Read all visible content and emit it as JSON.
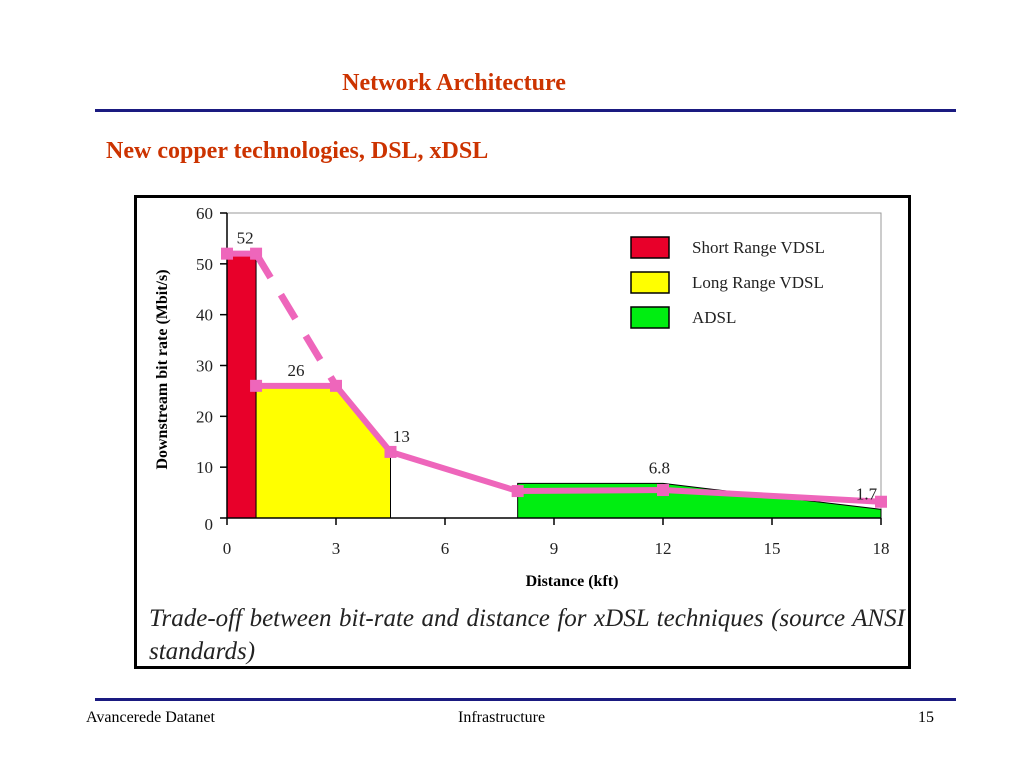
{
  "slide": {
    "title": "Network Architecture",
    "subtitle": "New copper technologies, DSL, xDSL",
    "caption": "Trade-off between bit-rate and distance for xDSL techniques (source ANSI standards)"
  },
  "footer": {
    "left": "Avancerede Datanet",
    "center": "Infrastructure",
    "page_number": "15"
  },
  "chart_data": {
    "type": "area",
    "xlabel": "Distance (kft)",
    "ylabel": "Downstream bit rate (Mbit/s)",
    "xlim": [
      0,
      18
    ],
    "ylim": [
      0,
      60
    ],
    "x_ticks": [
      0,
      3,
      6,
      9,
      12,
      15,
      18
    ],
    "y_ticks": [
      0,
      10,
      20,
      30,
      40,
      50,
      60
    ],
    "legend_position": "top-right",
    "series": [
      {
        "name": "Short Range VDSL",
        "color": "#e8002a",
        "x": [
          0,
          0.8
        ],
        "y": [
          52,
          52
        ]
      },
      {
        "name": "Long Range VDSL",
        "color": "#ffff00",
        "x": [
          0.8,
          3,
          4.5
        ],
        "y": [
          26,
          26,
          13
        ]
      },
      {
        "name": "ADSL",
        "color": "#00ee11",
        "x": [
          8,
          12,
          18
        ],
        "y": [
          6.8,
          6.8,
          1.7
        ]
      }
    ],
    "envelope": {
      "color": "#ee66bb",
      "points": [
        [
          0,
          52
        ],
        [
          0.8,
          52
        ],
        [
          1,
          49
        ],
        [
          3,
          26
        ],
        [
          4.5,
          13
        ],
        [
          8,
          5.3
        ],
        [
          12,
          5.5
        ],
        [
          18,
          3.2
        ]
      ],
      "dashed_segment": [
        [
          0.8,
          52
        ],
        [
          3,
          26
        ]
      ]
    },
    "data_labels": [
      {
        "text": "52",
        "x": 0.5,
        "y": 52
      },
      {
        "text": "26",
        "x": 1.9,
        "y": 26
      },
      {
        "text": "13",
        "x": 4.8,
        "y": 13
      },
      {
        "text": "6.8",
        "x": 11.9,
        "y": 6.8
      },
      {
        "text": "1.7",
        "x": 17.6,
        "y": 1.7
      }
    ]
  }
}
